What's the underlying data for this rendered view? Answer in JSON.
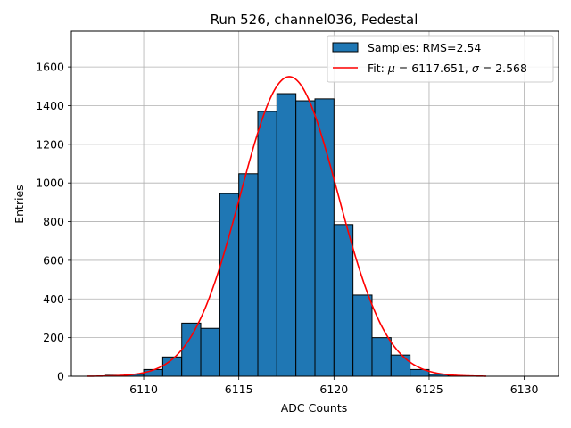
{
  "chart_data": {
    "type": "bar",
    "title": "Run 526, channel036, Pedestal",
    "xlabel": "ADC Counts",
    "ylabel": "Entries",
    "xlim": [
      6106.2,
      6131.8
    ],
    "ylim": [
      0,
      1785
    ],
    "x_ticks": [
      6110,
      6115,
      6120,
      6125,
      6130
    ],
    "y_ticks": [
      0,
      200,
      400,
      600,
      800,
      1000,
      1200,
      1400,
      1600
    ],
    "grid": true,
    "legend_position": "top-right",
    "histogram": {
      "name": "Samples: RMS=2.54",
      "color": "#1f77b4",
      "edge_color": "#000000",
      "bin_width": 1,
      "bin_left_edges": [
        6108,
        6109,
        6110,
        6111,
        6112,
        6113,
        6114,
        6115,
        6116,
        6117,
        6118,
        6119,
        6120,
        6121,
        6122,
        6123,
        6124,
        6125,
        6126
      ],
      "values": [
        5,
        10,
        35,
        100,
        275,
        248,
        945,
        1048,
        1370,
        1462,
        1425,
        1435,
        785,
        420,
        200,
        110,
        35,
        10,
        2
      ]
    },
    "fit": {
      "label_prefix": "Fit: ",
      "label_mu_symbol": "μ",
      "label_mu_value": " = 6117.651, ",
      "label_sigma_symbol": "σ",
      "label_sigma_value": " = 2.568",
      "color": "#ff0000",
      "mu": 6117.651,
      "sigma": 2.568,
      "amplitude": 1550,
      "x_range": [
        6107,
        6128
      ]
    }
  }
}
